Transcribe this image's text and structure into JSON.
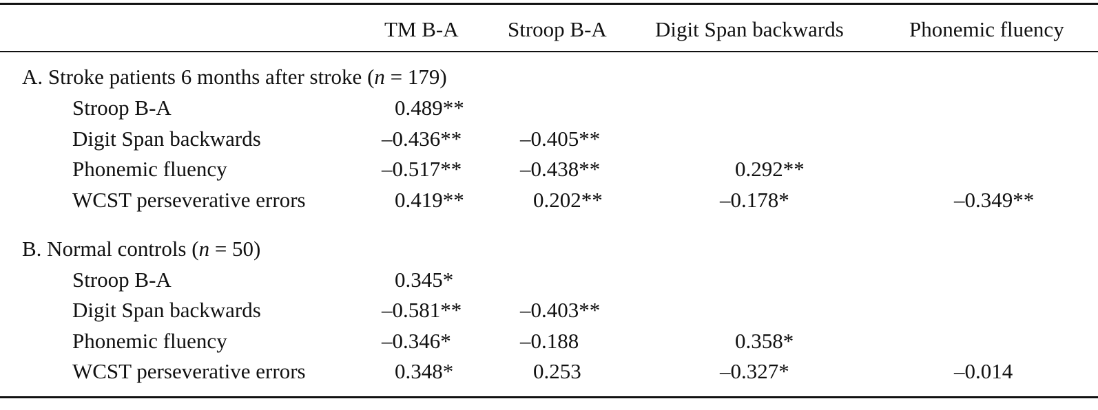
{
  "table": {
    "headers": [
      "TM B-A",
      "Stroop B-A",
      "Digit Span backwards",
      "Phonemic fluency"
    ],
    "sections": [
      {
        "title_prefix": "A. Stroke patients 6 months after stroke (",
        "title_var": "n",
        "title_suffix": " = 179)",
        "rows": [
          {
            "label": "Stroop B-A",
            "values": [
              "0.489**",
              "",
              "",
              ""
            ]
          },
          {
            "label": "Digit Span backwards",
            "values": [
              "–0.436**",
              "–0.405**",
              "",
              ""
            ]
          },
          {
            "label": "Phonemic fluency",
            "values": [
              "–0.517**",
              "–0.438**",
              "0.292**",
              ""
            ]
          },
          {
            "label": "WCST perseverative errors",
            "values": [
              "0.419**",
              "0.202**",
              "–0.178*",
              "–0.349**"
            ]
          }
        ]
      },
      {
        "title_prefix": "B. Normal controls (",
        "title_var": "n",
        "title_suffix": " = 50)",
        "rows": [
          {
            "label": "Stroop B-A",
            "values": [
              "0.345*",
              "",
              "",
              ""
            ]
          },
          {
            "label": "Digit Span backwards",
            "values": [
              "–0.581**",
              "–0.403**",
              "",
              ""
            ]
          },
          {
            "label": "Phonemic fluency",
            "values": [
              "–0.346*",
              "–0.188",
              "0.358*",
              ""
            ]
          },
          {
            "label": "WCST perseverative errors",
            "values": [
              "0.348*",
              "0.253",
              "–0.327*",
              "–0.014"
            ]
          }
        ]
      }
    ]
  }
}
